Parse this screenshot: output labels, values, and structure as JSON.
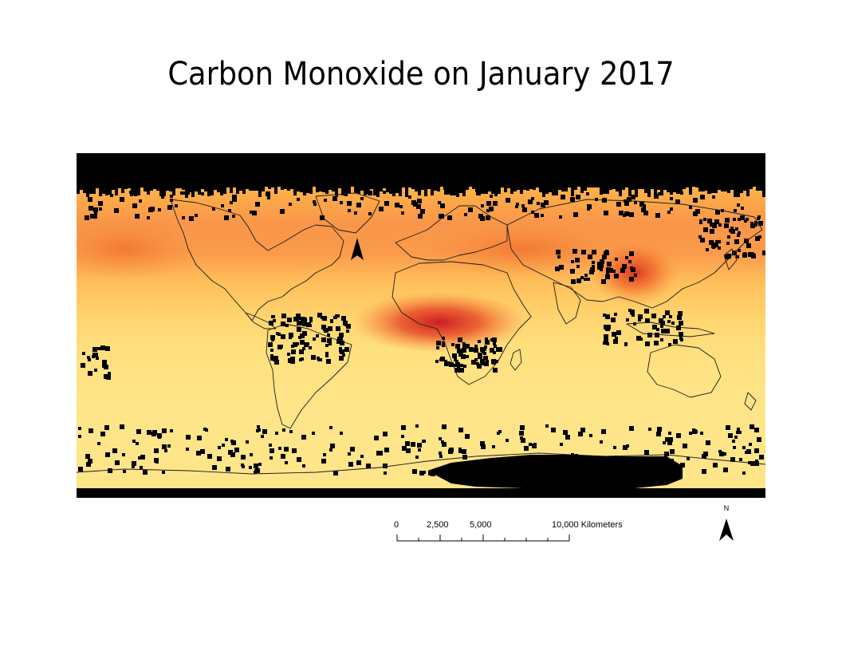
{
  "title": "Carbon Monoxide on January 2017",
  "map": {
    "variable": "carbon-monoxide",
    "projection": "equirectangular",
    "colors": {
      "no_data": "#000000",
      "low": "#FFE48A",
      "mid": "#FFB347",
      "high": "#F06A1E",
      "very_high": "#C8141E",
      "coastline": "#1a1a1a"
    }
  },
  "scalebar": {
    "labels": [
      "0",
      "2,500",
      "5,000",
      "10,000 Kilometers"
    ]
  },
  "north_arrow": {
    "label": "N"
  }
}
